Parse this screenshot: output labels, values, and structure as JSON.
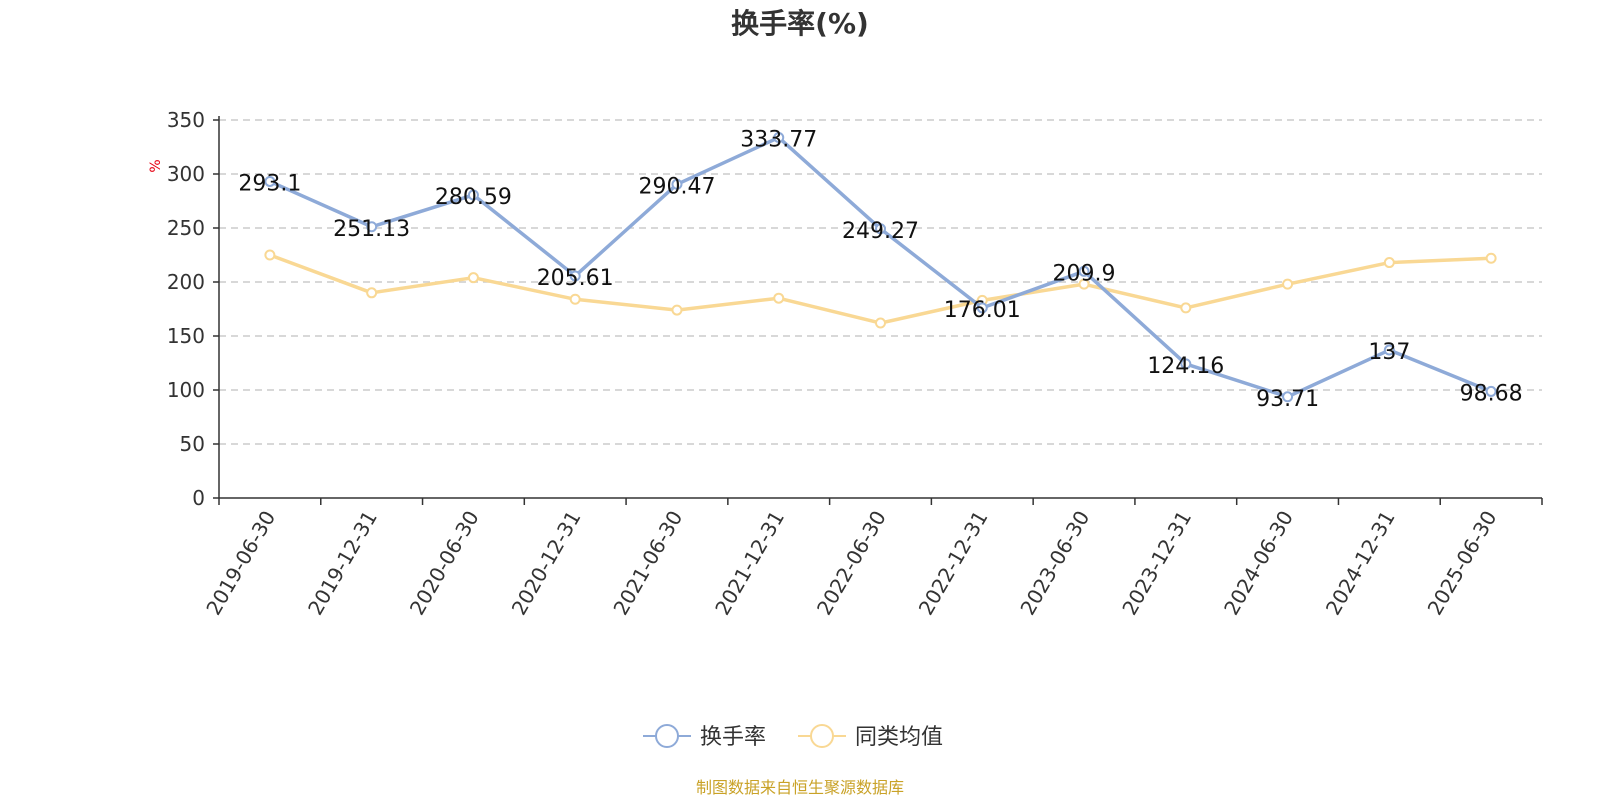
{
  "chart_data": {
    "type": "line",
    "title": "换手率(%)",
    "ylabel": "%",
    "ylim": [
      0,
      350
    ],
    "yticks": [
      0,
      50,
      100,
      150,
      200,
      250,
      300,
      350
    ],
    "grid": true,
    "legend_position": "bottom",
    "categories": [
      "2019-06-30",
      "2019-12-31",
      "2020-06-30",
      "2020-12-31",
      "2021-06-30",
      "2021-12-31",
      "2022-06-30",
      "2022-12-31",
      "2023-06-30",
      "2023-12-31",
      "2024-06-30",
      "2024-12-31",
      "2025-06-30"
    ],
    "series": [
      {
        "name": "换手率",
        "color": "#8eaad8",
        "labels_shown": true,
        "values": [
          293.1,
          251.13,
          280.59,
          205.61,
          290.47,
          333.77,
          249.27,
          176.01,
          209.9,
          124.16,
          93.71,
          137,
          98.68
        ]
      },
      {
        "name": "同类均值",
        "color": "#f9d894",
        "labels_shown": false,
        "values": [
          225,
          190,
          204,
          184,
          174,
          185,
          162,
          183,
          198,
          176,
          198,
          218,
          222
        ]
      }
    ]
  },
  "source_text": "制图数据来自恒生聚源数据库"
}
